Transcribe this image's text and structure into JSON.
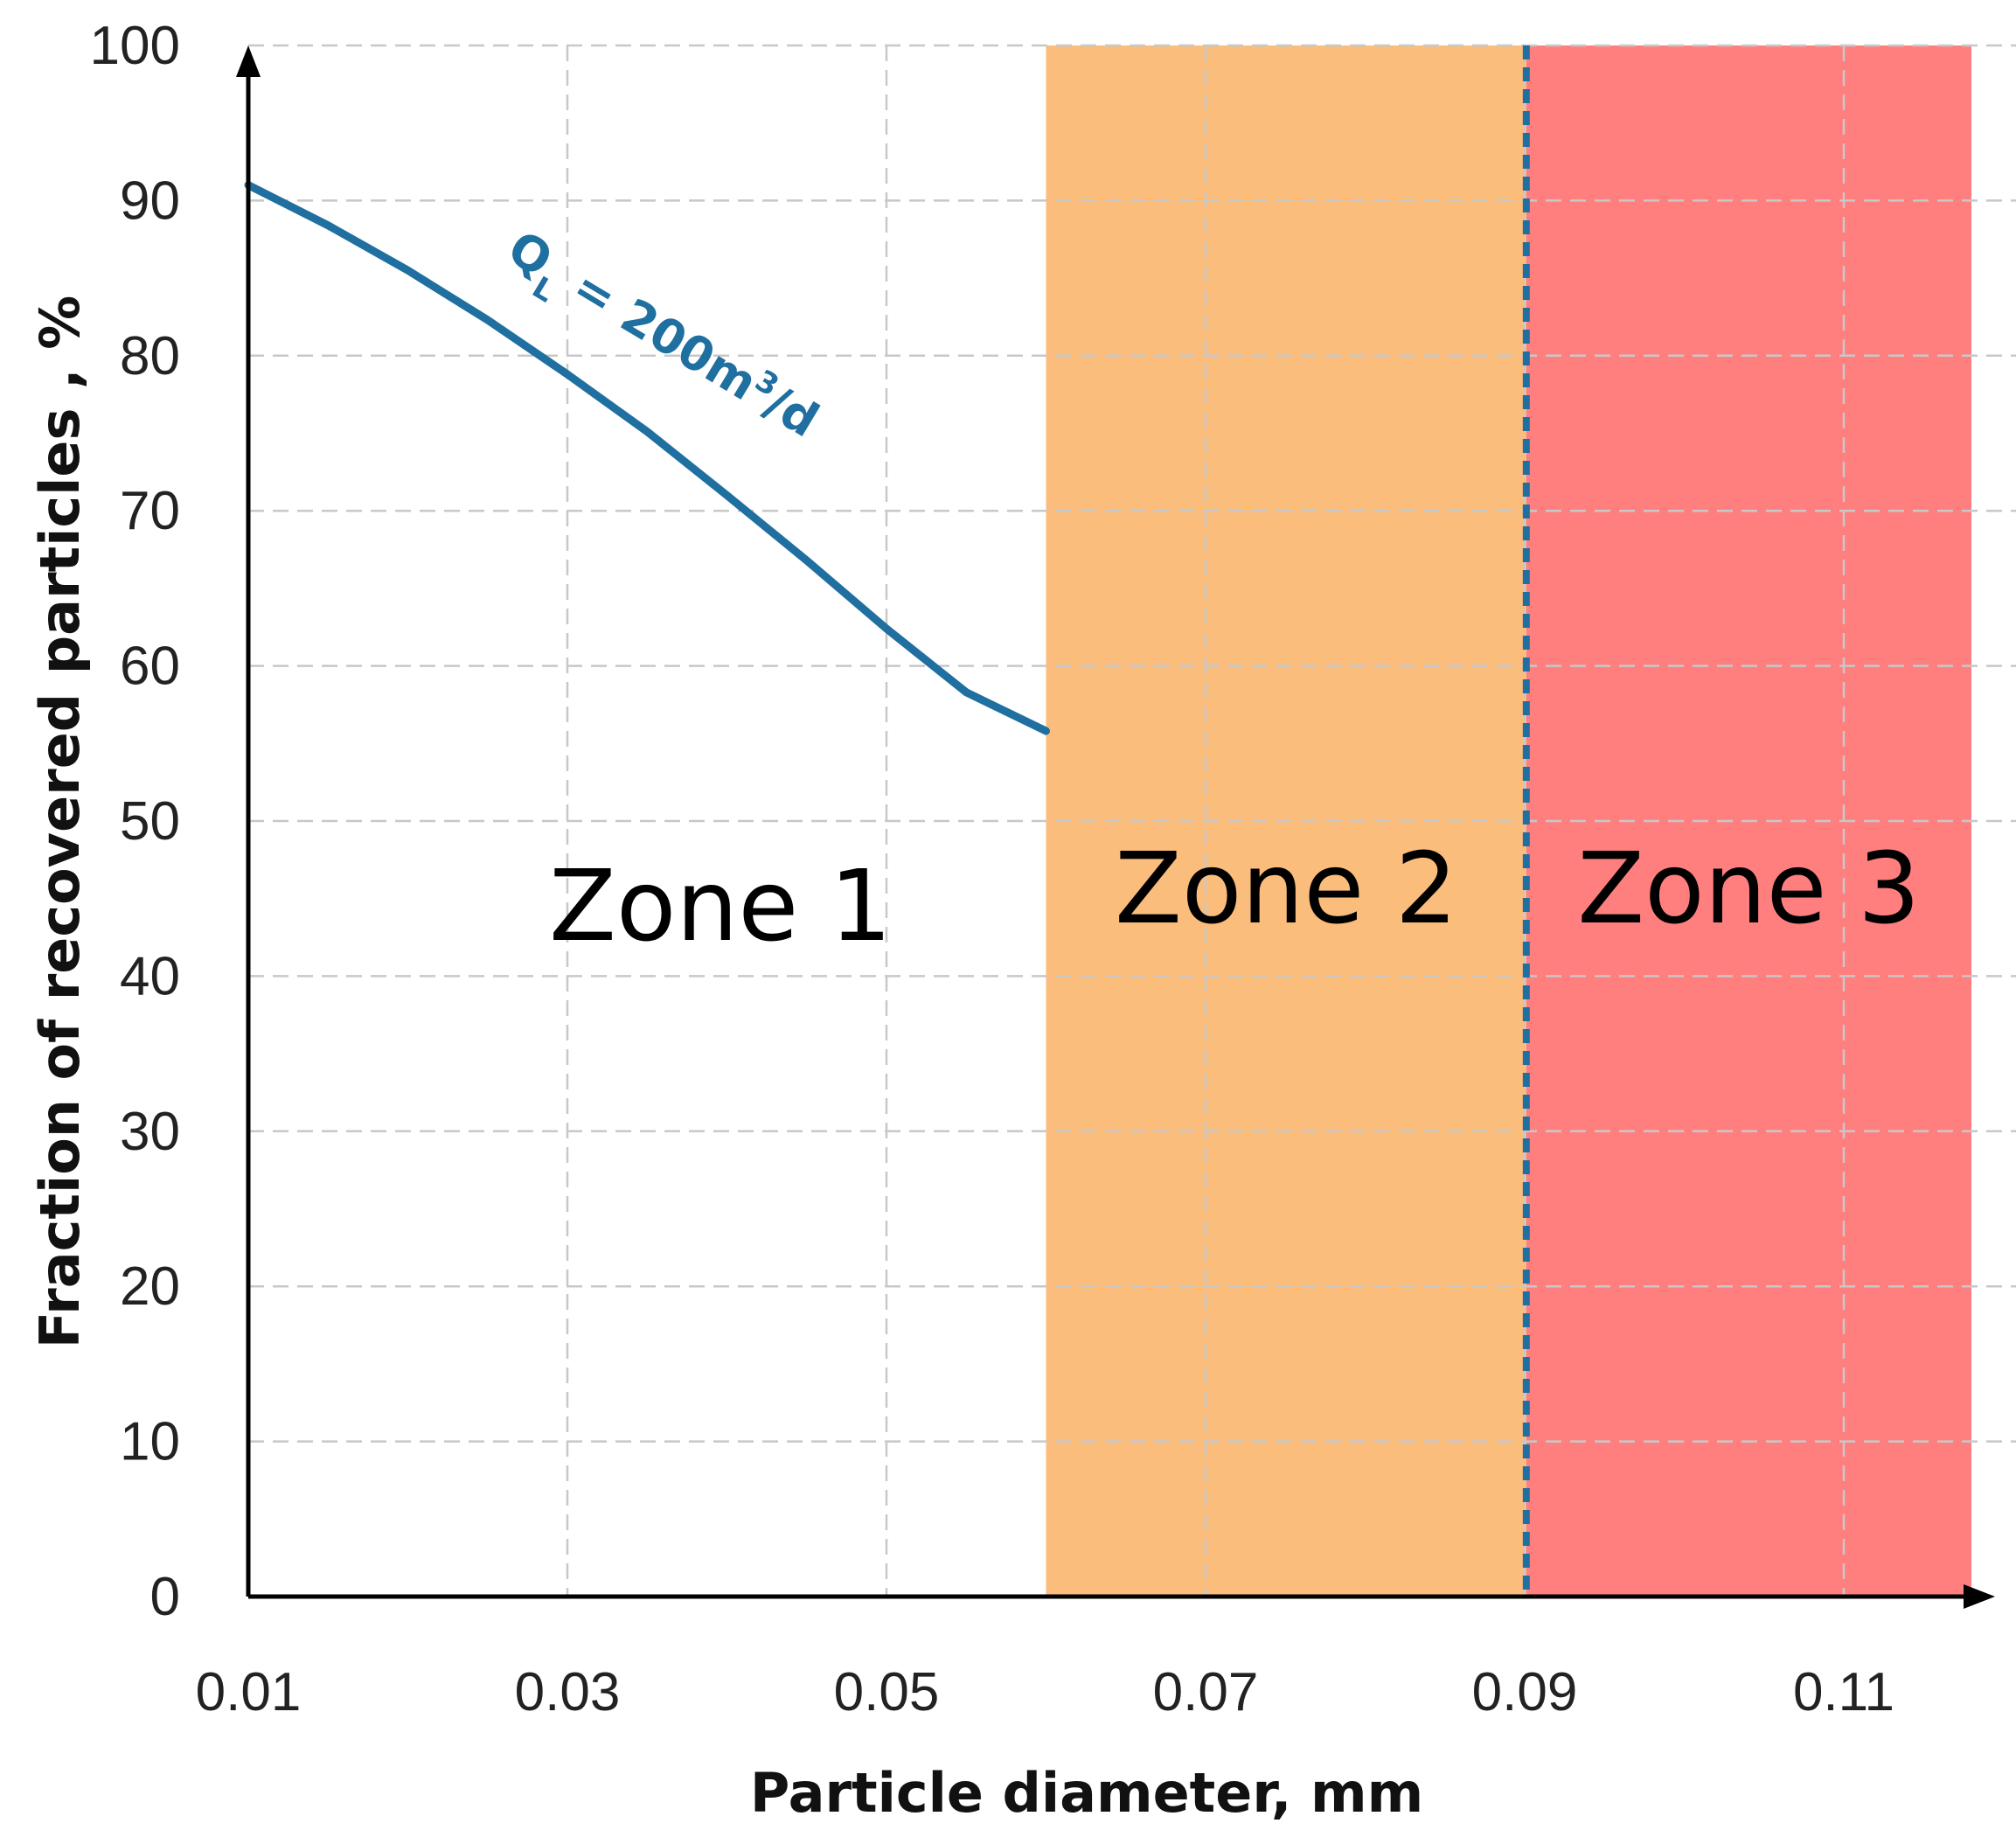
{
  "chart_data": {
    "type": "line",
    "title": "",
    "xlabel": "Particle diameter, mm",
    "ylabel": "Fraction of recovered particles , %",
    "xlim": [
      0.01,
      0.12
    ],
    "ylim": [
      0,
      100
    ],
    "x_ticks": [
      "0.01",
      "0.03",
      "0.05",
      "0.07",
      "0.09",
      "0.11"
    ],
    "y_ticks": [
      "0",
      "10",
      "20",
      "30",
      "40",
      "50",
      "60",
      "70",
      "80",
      "90",
      "100"
    ],
    "x_tick_values": [
      0.01,
      0.03,
      0.05,
      0.07,
      0.09,
      0.11
    ],
    "y_tick_values": [
      0,
      10,
      20,
      30,
      40,
      50,
      60,
      70,
      80,
      90,
      100
    ],
    "grid": true,
    "series": [
      {
        "name": "Q_L = 200m3/d",
        "color": "#1f6fa0",
        "x": [
          0.01,
          0.015,
          0.02,
          0.025,
          0.03,
          0.035,
          0.04,
          0.045,
          0.05,
          0.055,
          0.06
        ],
        "y": [
          91,
          88.4,
          85.5,
          82.3,
          78.8,
          75.1,
          71.0,
          66.8,
          62.4,
          58.3,
          55.8
        ]
      }
    ],
    "series_label": {
      "main": "Q",
      "subscript": "L",
      "equals": " = 200m",
      "superscript": "3",
      "unit_tail": "/d"
    },
    "zones": [
      {
        "label": "Zone 1",
        "x_start": 0.01,
        "x_end": 0.06,
        "color": "#ffffff"
      },
      {
        "label": "Zone 2",
        "x_start": 0.06,
        "x_end": 0.0901,
        "color": "#fbbd7c"
      },
      {
        "label": "Zone 3",
        "x_start": 0.0901,
        "x_end": 0.118,
        "color": "#ff7f7f"
      }
    ],
    "boundary_x": 0.0901,
    "boundary_color": "#1f6fa0"
  }
}
